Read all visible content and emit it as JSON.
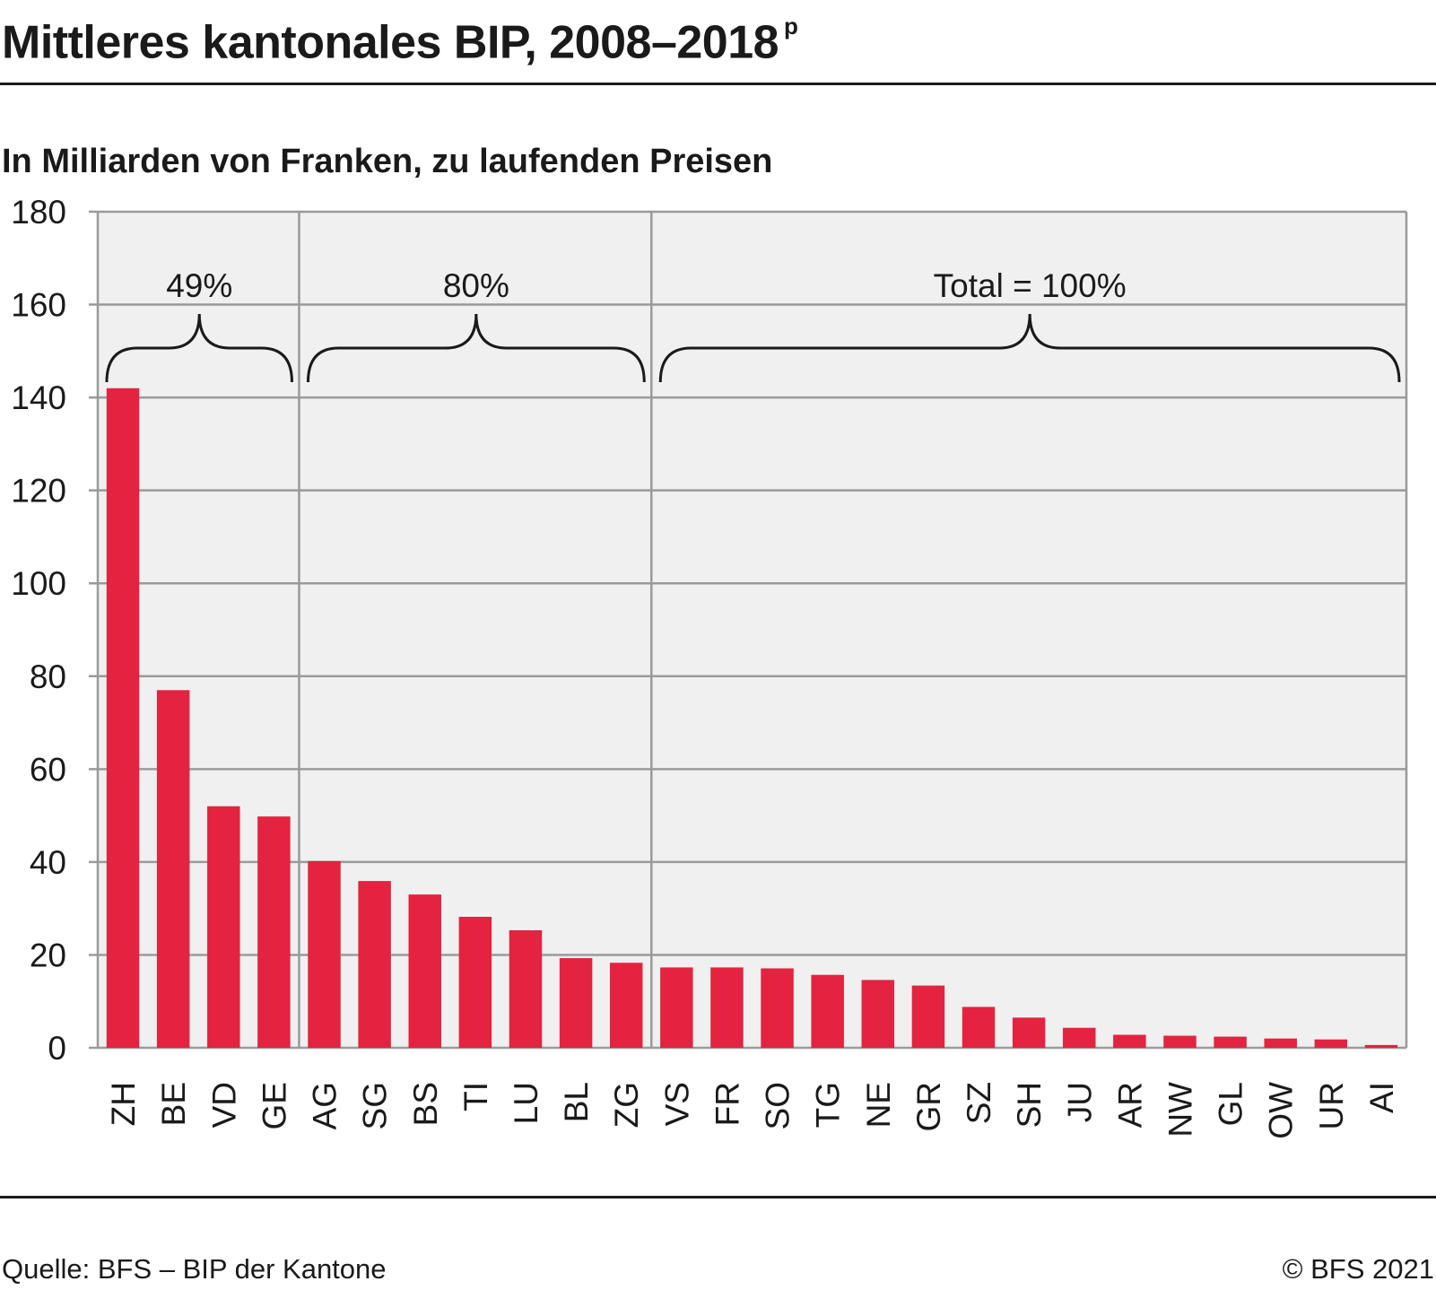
{
  "header": {
    "title": "Mittleres kantonales BIP, 2008–2018",
    "title_sup": "p",
    "subtitle": "In Milliarden von Franken, zu laufenden Preisen"
  },
  "footer": {
    "source": "Quelle: BFS – BIP der Kantone",
    "copyright": "© BFS 2021"
  },
  "chart_data": {
    "type": "bar",
    "title": "Mittleres kantonales BIP, 2008–2018",
    "ylabel": "In Milliarden von Franken, zu laufenden Preisen",
    "ylim": [
      0,
      180
    ],
    "yticks": [
      0,
      20,
      40,
      60,
      80,
      100,
      120,
      140,
      160,
      180
    ],
    "grid": true,
    "bar_color": "#e3233f",
    "plot_bg": "#f0f0f0",
    "categories": [
      "ZH",
      "BE",
      "VD",
      "GE",
      "AG",
      "SG",
      "BS",
      "TI",
      "LU",
      "BL",
      "ZG",
      "VS",
      "FR",
      "SO",
      "TG",
      "NE",
      "GR",
      "SZ",
      "SH",
      "JU",
      "AR",
      "NW",
      "GL",
      "OW",
      "UR",
      "AI"
    ],
    "values": [
      142,
      77,
      52,
      49.8,
      40.2,
      35.9,
      33,
      28.2,
      25.3,
      19.3,
      18.3,
      17.3,
      17.3,
      17.1,
      15.7,
      14.6,
      13.4,
      8.8,
      6.5,
      4.3,
      2.8,
      2.6,
      2.4,
      2.0,
      1.8,
      0.6
    ],
    "annotations": [
      {
        "label": "49%",
        "from_category": "ZH",
        "to_category": "GE"
      },
      {
        "label": "80%",
        "from_category": "AG",
        "to_category": "ZG"
      },
      {
        "label": "Total = 100%",
        "from_category": "VS",
        "to_category": "AI"
      }
    ]
  }
}
